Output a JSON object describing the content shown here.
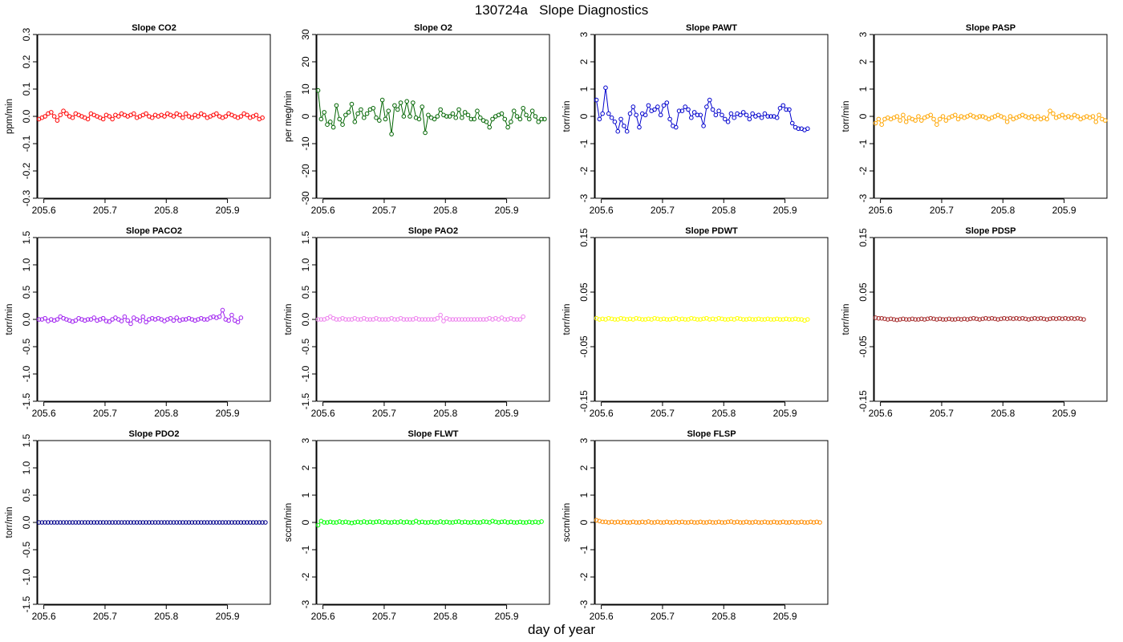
{
  "title": "130724a   Slope Diagnostics",
  "xlabel": "day of year",
  "chart_data": [
    {
      "type": "line",
      "title": "Slope CO2",
      "ylabel": "ppm/min",
      "color": "#ff0000",
      "ylim": [
        -0.3,
        0.3
      ],
      "yticks": [
        -0.3,
        -0.2,
        -0.1,
        0.0,
        0.1,
        0.2,
        0.3
      ],
      "ytick_labels": [
        "-0.3",
        "-0.2",
        "-0.1",
        "0.0",
        "0.1",
        "0.2",
        "0.3"
      ],
      "xlim": [
        205.59,
        205.97
      ],
      "xticks": [
        205.6,
        205.7,
        205.8,
        205.9
      ],
      "xtick_labels": [
        "205.6",
        "205.7",
        "205.8",
        "205.9"
      ],
      "x_start": 205.592,
      "x_step": 0.005,
      "y": [
        -0.01,
        -0.005,
        0.0,
        0.01,
        0.015,
        0.0,
        -0.015,
        0.005,
        0.02,
        0.01,
        0.0,
        -0.005,
        0.01,
        0.005,
        0.0,
        -0.005,
        -0.01,
        0.01,
        0.005,
        0.0,
        -0.005,
        -0.01,
        0.005,
        0.0,
        -0.01,
        0.005,
        0.0,
        0.01,
        0.005,
        0.0,
        0.005,
        0.01,
        -0.005,
        0.0,
        0.005,
        0.01,
        0.0,
        -0.005,
        0.005,
        0.0,
        0.005,
        0.0,
        0.01,
        0.005,
        0.0,
        0.01,
        0.005,
        -0.005,
        0.01,
        0.0,
        -0.005,
        0.005,
        0.0,
        0.01,
        0.005,
        -0.005,
        0.0,
        0.005,
        0.01,
        0.0,
        -0.005,
        0.0,
        0.01,
        0.005,
        0.0,
        -0.005,
        0.0,
        0.01,
        0.005,
        -0.005,
        0.0,
        0.005,
        -0.01,
        -0.005
      ]
    },
    {
      "type": "line",
      "title": "Slope O2",
      "ylabel": "per meg/min",
      "color": "#006400",
      "ylim": [
        -30,
        30
      ],
      "yticks": [
        -30,
        -20,
        -10,
        0,
        10,
        20,
        30
      ],
      "ytick_labels": [
        "-30",
        "-20",
        "-10",
        "0",
        "10",
        "20",
        "30"
      ],
      "xlim": [
        205.59,
        205.97
      ],
      "xticks": [
        205.6,
        205.7,
        205.8,
        205.9
      ],
      "xtick_labels": [
        "205.6",
        "205.7",
        "205.8",
        "205.9"
      ],
      "x_start": 205.592,
      "x_step": 0.005,
      "y": [
        9.5,
        -1,
        1.5,
        -3,
        -2,
        -4,
        4,
        -1,
        -3,
        0.5,
        1.5,
        4.5,
        -2,
        1,
        2.5,
        -0.5,
        1,
        2.5,
        3,
        -0.5,
        -1.5,
        6,
        -1,
        2,
        -6.5,
        4,
        2.5,
        5,
        0,
        5.5,
        0,
        5,
        -0.5,
        -1,
        3.5,
        -6,
        0.5,
        -0.5,
        -1,
        0,
        2.5,
        0.5,
        0,
        0,
        1,
        -0.5,
        2.5,
        -0.5,
        1.5,
        0.5,
        -1,
        -1,
        2,
        -0.5,
        -1.5,
        -2,
        -4,
        -1,
        0,
        0.5,
        1,
        -1,
        -4,
        -2,
        2,
        0,
        -1,
        3,
        0.5,
        -1,
        2,
        0,
        -2,
        -1,
        -1
      ]
    },
    {
      "type": "line",
      "title": "Slope PAWT",
      "ylabel": "torr/min",
      "color": "#0000cd",
      "ylim": [
        -3,
        3
      ],
      "yticks": [
        -3,
        -2,
        -1,
        0,
        1,
        2,
        3
      ],
      "ytick_labels": [
        "-3",
        "-2",
        "-1",
        "0",
        "1",
        "2",
        "3"
      ],
      "xlim": [
        205.59,
        205.97
      ],
      "xticks": [
        205.6,
        205.7,
        205.8,
        205.9
      ],
      "xtick_labels": [
        "205.6",
        "205.7",
        "205.8",
        "205.9"
      ],
      "x_start": 205.592,
      "x_step": 0.005,
      "y": [
        0.6,
        -0.1,
        0.1,
        1.05,
        0.1,
        -0.05,
        -0.2,
        -0.55,
        -0.1,
        -0.35,
        -0.55,
        0.1,
        0.35,
        0.05,
        -0.4,
        0.1,
        0.05,
        0.4,
        0.2,
        0.25,
        0.35,
        0.05,
        0.4,
        0.5,
        -0.1,
        -0.35,
        -0.4,
        0.2,
        0.2,
        0.35,
        0.25,
        -0.05,
        0.15,
        0.05,
        0.05,
        -0.35,
        0.35,
        0.6,
        0.25,
        0.05,
        0.2,
        0.05,
        -0.1,
        -0.2,
        0.1,
        -0.05,
        0.1,
        0.05,
        0.15,
        0.05,
        -0.1,
        0.1,
        0.0,
        0.05,
        -0.05,
        0.1,
        0.0,
        0.0,
        0.0,
        -0.05,
        0.3,
        0.4,
        0.25,
        0.25,
        -0.25,
        -0.4,
        -0.45,
        -0.45,
        -0.5,
        -0.45
      ]
    },
    {
      "type": "line",
      "title": "Slope PASP",
      "ylabel": "torr/min",
      "color": "#ffa500",
      "ylim": [
        -3,
        3
      ],
      "yticks": [
        -3,
        -2,
        -1,
        0,
        1,
        2,
        3
      ],
      "ytick_labels": [
        "-3",
        "-2",
        "-1",
        "0",
        "1",
        "2",
        "3"
      ],
      "xlim": [
        205.59,
        205.97
      ],
      "xticks": [
        205.6,
        205.7,
        205.8,
        205.9
      ],
      "xtick_labels": [
        "205.6",
        "205.7",
        "205.8",
        "205.9"
      ],
      "x_start": 205.592,
      "x_step": 0.005,
      "y": [
        -0.25,
        -0.1,
        -0.3,
        -0.1,
        -0.05,
        -0.1,
        -0.05,
        0.0,
        -0.15,
        0.05,
        -0.2,
        -0.05,
        -0.1,
        -0.15,
        0.0,
        -0.15,
        -0.05,
        0.0,
        0.05,
        -0.1,
        -0.3,
        -0.1,
        0.0,
        -0.15,
        -0.05,
        0.0,
        0.05,
        -0.1,
        0.0,
        -0.05,
        0.0,
        0.05,
        0.0,
        -0.05,
        0.0,
        0.0,
        -0.05,
        -0.1,
        -0.05,
        0.0,
        0.05,
        0.0,
        -0.05,
        -0.2,
        0.0,
        -0.1,
        -0.05,
        0.0,
        0.05,
        0.0,
        -0.05,
        0.0,
        -0.1,
        0.0,
        -0.1,
        -0.05,
        -0.1,
        0.2,
        0.1,
        -0.05,
        0.0,
        0.05,
        -0.05,
        0.0,
        -0.05,
        0.05,
        0.0,
        -0.1,
        -0.05,
        0.0,
        -0.05,
        0.0,
        -0.2,
        0.05,
        -0.1,
        -0.15
      ]
    },
    {
      "type": "line",
      "title": "Slope PACO2",
      "ylabel": "torr/min",
      "color": "#a020f0",
      "ylim": [
        -1.5,
        1.5
      ],
      "yticks": [
        -1.5,
        -1.0,
        -0.5,
        0.0,
        0.5,
        1.0,
        1.5
      ],
      "ytick_labels": [
        "-1.5",
        "-1.0",
        "-0.5",
        "0.0",
        "0.5",
        "1.0",
        "1.5"
      ],
      "xlim": [
        205.59,
        205.97
      ],
      "xticks": [
        205.6,
        205.7,
        205.8,
        205.9
      ],
      "xtick_labels": [
        "205.6",
        "205.7",
        "205.8",
        "205.9"
      ],
      "x_start": 205.592,
      "x_step": 0.005,
      "y": [
        0.0,
        0.0,
        0.02,
        -0.03,
        0.0,
        -0.02,
        0.0,
        0.05,
        0.02,
        0.0,
        -0.02,
        -0.04,
        -0.02,
        0.02,
        0.0,
        -0.02,
        0.0,
        0.0,
        0.03,
        -0.02,
        0.0,
        0.02,
        -0.03,
        -0.04,
        0.0,
        0.03,
        0.0,
        -0.03,
        0.05,
        -0.02,
        -0.08,
        0.03,
        0.0,
        -0.03,
        0.05,
        -0.05,
        0.0,
        0.02,
        0.0,
        0.02,
        0.0,
        -0.03,
        0.0,
        0.02,
        -0.02,
        0.03,
        -0.02,
        0.0,
        0.0,
        0.02,
        0.0,
        -0.02,
        0.0,
        0.02,
        0.0,
        0.0,
        0.03,
        0.05,
        0.03,
        0.05,
        0.17,
        0.0,
        -0.02,
        0.08,
        -0.02,
        -0.05,
        0.03
      ]
    },
    {
      "type": "line",
      "title": "Slope PAO2",
      "ylabel": "torr/min",
      "color": "#ee82ee",
      "ylim": [
        -1.5,
        1.5
      ],
      "yticks": [
        -1.5,
        -1.0,
        -0.5,
        0.0,
        0.5,
        1.0,
        1.5
      ],
      "ytick_labels": [
        "-1.5",
        "-1.0",
        "-0.5",
        "0.0",
        "0.5",
        "1.0",
        "1.5"
      ],
      "xlim": [
        205.59,
        205.97
      ],
      "xticks": [
        205.6,
        205.7,
        205.8,
        205.9
      ],
      "xtick_labels": [
        "205.6",
        "205.7",
        "205.8",
        "205.9"
      ],
      "x_start": 205.592,
      "x_step": 0.005,
      "y": [
        0.0,
        0.0,
        0.0,
        0.02,
        0.05,
        0.02,
        0.0,
        0.0,
        0.02,
        0.0,
        0.0,
        0.0,
        0.02,
        0.0,
        0.0,
        0.02,
        0.0,
        0.0,
        0.0,
        0.02,
        0.0,
        0.0,
        0.0,
        0.0,
        0.02,
        0.0,
        0.0,
        0.02,
        0.0,
        0.0,
        0.0,
        0.0,
        0.02,
        0.0,
        0.0,
        0.0,
        0.0,
        0.0,
        0.0,
        0.02,
        0.08,
        -0.03,
        0.02,
        0.0,
        0.0,
        0.0,
        0.0,
        0.0,
        0.0,
        0.0,
        0.0,
        0.0,
        0.0,
        0.0,
        0.0,
        0.0,
        0.02,
        0.0,
        0.02,
        0.0,
        0.03,
        0.0,
        0.0,
        0.02,
        0.0,
        0.0,
        0.0,
        0.05
      ]
    },
    {
      "type": "line",
      "title": "Slope PDWT",
      "ylabel": "torr/min",
      "color": "#ffff00",
      "ylim": [
        -0.15,
        0.15
      ],
      "yticks": [
        -0.15,
        -0.05,
        0.05,
        0.15
      ],
      "ytick_labels": [
        "-0.15",
        "-0.05",
        "0.05",
        "0.15"
      ],
      "xlim": [
        205.59,
        205.97
      ],
      "xticks": [
        205.6,
        205.7,
        205.8,
        205.9
      ],
      "xtick_labels": [
        "205.6",
        "205.7",
        "205.8",
        "205.9"
      ],
      "x_start": 205.592,
      "x_step": 0.005,
      "y": [
        0.002,
        0.0,
        0.001,
        0.0,
        0.002,
        0.001,
        0.0,
        0.0,
        0.002,
        0.001,
        0.0,
        0.001,
        0.0,
        0.002,
        0.001,
        0.0,
        0.0,
        0.001,
        0.0,
        0.002,
        0.001,
        0.0,
        0.001,
        0.0,
        0.0,
        0.001,
        0.002,
        0.0,
        0.001,
        0.0,
        0.0,
        0.002,
        0.001,
        0.0,
        0.0,
        0.001,
        0.002,
        0.0,
        0.001,
        0.0,
        0.002,
        0.001,
        0.0,
        0.0,
        0.001,
        0.0,
        0.002,
        0.001,
        0.0,
        0.0,
        0.001,
        0.0,
        0.0,
        0.001,
        0.0,
        0.0,
        0.001,
        0.0,
        0.0,
        0.001,
        0.0,
        0.0,
        0.001,
        0.0,
        0.0,
        0.001,
        0.0,
        0.0,
        -0.002,
        0.0
      ]
    },
    {
      "type": "line",
      "title": "Slope PDSP",
      "ylabel": "torr/min",
      "color": "#a52a2a",
      "ylim": [
        -0.15,
        0.15
      ],
      "yticks": [
        -0.15,
        -0.05,
        0.05,
        0.15
      ],
      "ytick_labels": [
        "-0.15",
        "-0.05",
        "0.05",
        "0.15"
      ],
      "xlim": [
        205.59,
        205.97
      ],
      "xticks": [
        205.6,
        205.7,
        205.8,
        205.9
      ],
      "xtick_labels": [
        "205.6",
        "205.7",
        "205.8",
        "205.9"
      ],
      "x_start": 205.592,
      "x_step": 0.005,
      "y": [
        0.003,
        0.002,
        0.002,
        0.001,
        0.0,
        0.001,
        0.0,
        -0.001,
        0.0,
        0.001,
        0.0,
        0.0,
        0.001,
        0.0,
        0.0,
        0.001,
        0.0,
        0.001,
        0.002,
        0.001,
        0.0,
        0.001,
        0.0,
        0.0,
        0.001,
        0.0,
        0.0,
        0.001,
        0.0,
        0.001,
        0.0,
        0.001,
        0.002,
        0.001,
        0.0,
        0.001,
        0.002,
        0.001,
        0.002,
        0.001,
        0.0,
        0.001,
        0.002,
        0.001,
        0.002,
        0.001,
        0.002,
        0.001,
        0.002,
        0.001,
        0.0,
        0.001,
        0.002,
        0.001,
        0.002,
        0.001,
        0.0,
        0.001,
        0.002,
        0.001,
        0.002,
        0.001,
        0.002,
        0.001,
        0.002,
        0.001,
        0.002,
        0.001,
        0.0
      ]
    },
    {
      "type": "line",
      "title": "Slope PDO2",
      "ylabel": "torr/min",
      "color": "#00008b",
      "ylim": [
        -1.5,
        1.5
      ],
      "yticks": [
        -1.5,
        -1.0,
        -0.5,
        0.0,
        0.5,
        1.0,
        1.5
      ],
      "ytick_labels": [
        "-1.5",
        "-1.0",
        "-0.5",
        "0.0",
        "0.5",
        "1.0",
        "1.5"
      ],
      "xlim": [
        205.59,
        205.97
      ],
      "xticks": [
        205.6,
        205.7,
        205.8,
        205.9
      ],
      "xtick_labels": [
        "205.6",
        "205.7",
        "205.8",
        "205.9"
      ],
      "x_start": 205.592,
      "x_step": 0.005,
      "y": [
        0,
        0,
        0,
        0,
        0,
        0,
        0,
        0,
        0,
        0,
        0,
        0,
        0,
        0,
        0,
        0,
        0,
        0,
        0,
        0,
        0,
        0,
        0,
        0,
        0,
        0,
        0,
        0,
        0,
        0,
        0,
        0,
        0,
        0,
        0,
        0,
        0,
        0,
        0,
        0,
        0,
        0,
        0,
        0,
        0,
        0,
        0,
        0,
        0,
        0,
        0,
        0,
        0,
        0,
        0,
        0,
        0,
        0,
        0,
        0,
        0,
        0,
        0,
        0,
        0,
        0,
        0,
        0,
        0,
        0,
        0,
        0,
        0,
        0,
        0
      ]
    },
    {
      "type": "line",
      "title": "Slope FLWT",
      "ylabel": "sccm/min",
      "color": "#00ff00",
      "ylim": [
        -3,
        3
      ],
      "yticks": [
        -3,
        -2,
        -1,
        0,
        1,
        2,
        3
      ],
      "ytick_labels": [
        "-3",
        "-2",
        "-1",
        "0",
        "1",
        "2",
        "3"
      ],
      "xlim": [
        205.59,
        205.97
      ],
      "xticks": [
        205.6,
        205.7,
        205.8,
        205.9
      ],
      "xtick_labels": [
        "205.6",
        "205.7",
        "205.8",
        "205.9"
      ],
      "x_start": 205.592,
      "x_step": 0.005,
      "y": [
        -0.1,
        0.05,
        0.0,
        0.0,
        0.02,
        0.0,
        0.0,
        0.03,
        0.0,
        0.02,
        0.0,
        -0.02,
        0.0,
        0.02,
        0.0,
        0.03,
        0.0,
        0.02,
        0.0,
        0.02,
        0.03,
        0.0,
        0.02,
        0.0,
        0.0,
        0.02,
        0.0,
        0.03,
        0.0,
        0.02,
        0.0,
        0.0,
        0.05,
        0.0,
        0.02,
        0.0,
        0.0,
        0.02,
        0.0,
        0.0,
        0.03,
        0.0,
        0.02,
        0.0,
        0.0,
        0.02,
        0.03,
        0.0,
        0.02,
        0.0,
        0.0,
        0.02,
        0.0,
        0.0,
        0.03,
        0.02,
        0.0,
        0.05,
        0.02,
        0.0,
        0.02,
        0.03,
        0.0,
        0.02,
        0.0,
        0.0,
        0.02,
        0.0,
        0.0,
        0.02,
        0.0,
        0.02,
        0.0,
        0.03
      ]
    },
    {
      "type": "line",
      "title": "Slope FLSP",
      "ylabel": "sccm/min",
      "color": "#ff8c00",
      "ylim": [
        -3,
        3
      ],
      "yticks": [
        -3,
        -2,
        -1,
        0,
        1,
        2,
        3
      ],
      "ytick_labels": [
        "-3",
        "-2",
        "-1",
        "0",
        "1",
        "2",
        "3"
      ],
      "xlim": [
        205.59,
        205.97
      ],
      "xticks": [
        205.6,
        205.7,
        205.8,
        205.9
      ],
      "xtick_labels": [
        "205.6",
        "205.7",
        "205.8",
        "205.9"
      ],
      "x_start": 205.592,
      "x_step": 0.005,
      "y": [
        0.08,
        0.05,
        0.02,
        0.02,
        0.0,
        0.02,
        0.0,
        0.02,
        0.0,
        0.02,
        0.0,
        0.0,
        0.02,
        0.0,
        0.0,
        0.02,
        0.0,
        0.03,
        0.0,
        0.0,
        0.02,
        0.0,
        0.0,
        0.02,
        0.0,
        0.0,
        0.02,
        0.0,
        0.02,
        0.0,
        0.0,
        0.02,
        0.0,
        0.0,
        0.02,
        0.0,
        0.0,
        0.02,
        0.0,
        0.0,
        0.02,
        0.0,
        0.0,
        0.02,
        0.03,
        0.0,
        0.02,
        0.0,
        0.0,
        0.02,
        0.0,
        0.0,
        0.02,
        0.0,
        0.0,
        0.02,
        0.0,
        0.0,
        0.02,
        0.0,
        0.0,
        0.02,
        0.0,
        0.0,
        0.02,
        0.0,
        0.0,
        0.02,
        0.0,
        0.0,
        0.02,
        0.0,
        0.02,
        0.0
      ]
    }
  ]
}
